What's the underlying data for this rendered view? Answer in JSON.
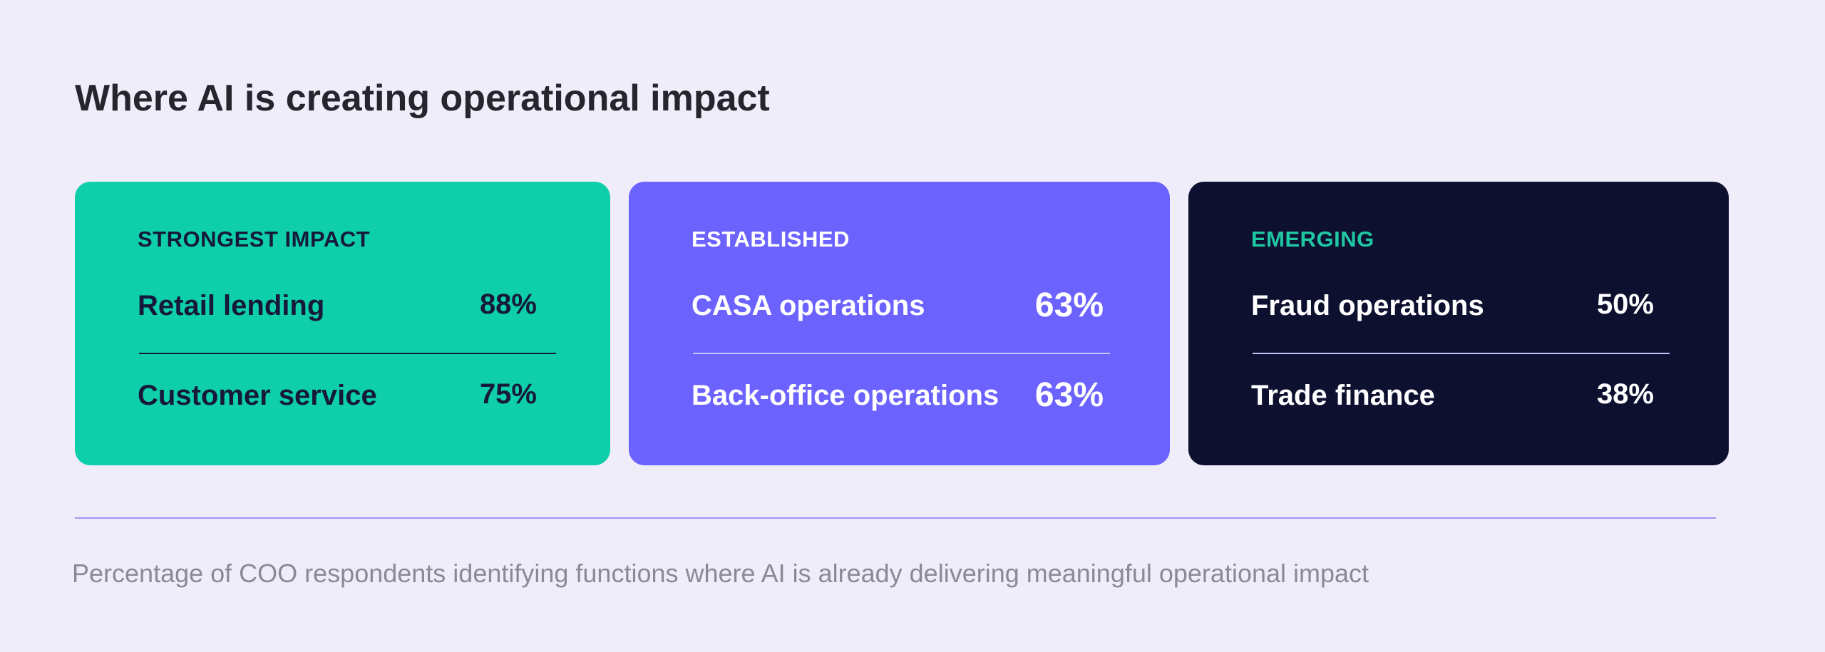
{
  "header": {
    "title": "Where AI is creating operational impact"
  },
  "cards": [
    {
      "label": "STRONGEST IMPACT",
      "rows": [
        {
          "name": "Retail lending",
          "value": "88%"
        },
        {
          "name": "Customer service",
          "value": "75%"
        }
      ]
    },
    {
      "label": "ESTABLISHED",
      "rows": [
        {
          "name": "CASA operations",
          "value": "63%"
        },
        {
          "name": "Back-office operations",
          "value": "63%"
        }
      ]
    },
    {
      "label": "EMERGING",
      "rows": [
        {
          "name": "Fraud operations",
          "value": "50%"
        },
        {
          "name": "Trade finance",
          "value": "38%"
        }
      ]
    }
  ],
  "footnote": "Percentage of COO respondents identifying functions where AI is already delivering meaningful operational impact"
}
